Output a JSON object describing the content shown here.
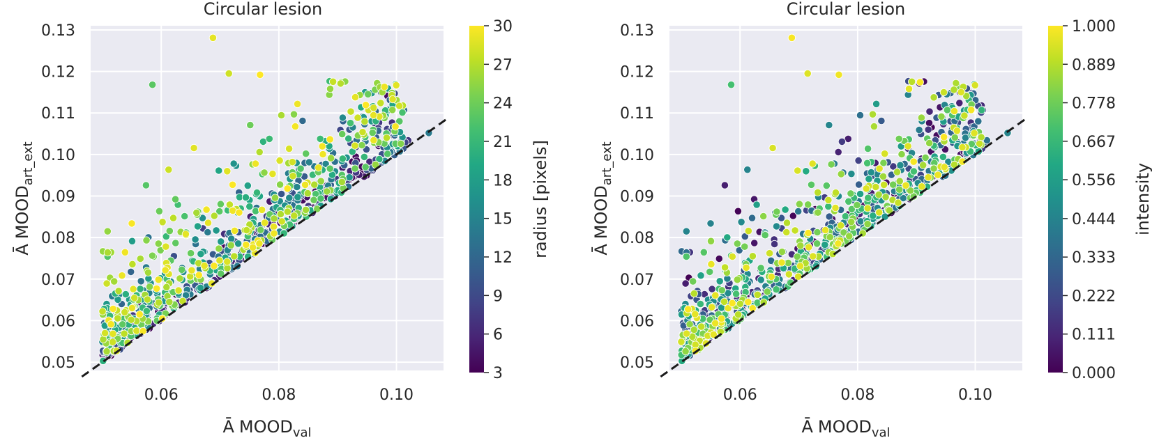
{
  "chart_data": [
    {
      "type": "scatter",
      "title": "Circular lesion",
      "xlabel_main": "MOOD",
      "xlabel_sub": "val",
      "ylabel_main": "MOOD",
      "ylabel_sub": "art_ext",
      "xlim": [
        0.048,
        0.108
      ],
      "ylim": [
        0.048,
        0.131
      ],
      "xticks": [
        0.06,
        0.08,
        0.1
      ],
      "xtick_labels": [
        "0.06",
        "0.08",
        "0.10"
      ],
      "yticks": [
        0.05,
        0.06,
        0.07,
        0.08,
        0.09,
        0.1,
        0.11,
        0.12,
        0.13
      ],
      "ytick_labels": [
        "0.05",
        "0.06",
        "0.07",
        "0.08",
        "0.09",
        "0.10",
        "0.11",
        "0.12",
        "0.13"
      ],
      "diagonal": "y = x (dashed)",
      "colorbar": {
        "label": "radius [pixels]",
        "min": 3,
        "max": 30,
        "ticks": [
          3,
          6,
          9,
          12,
          15,
          18,
          21,
          24,
          27,
          30
        ],
        "tick_labels": [
          "3",
          "6",
          "9",
          "12",
          "15",
          "18",
          "21",
          "24",
          "27",
          "30"
        ],
        "colormap": "viridis"
      },
      "color_mode": "radius",
      "n_points": 900
    },
    {
      "type": "scatter",
      "title": "Circular lesion",
      "xlabel_main": "MOOD",
      "xlabel_sub": "val",
      "ylabel_main": "MOOD",
      "ylabel_sub": "art_ext",
      "xlim": [
        0.048,
        0.108
      ],
      "ylim": [
        0.048,
        0.131
      ],
      "xticks": [
        0.06,
        0.08,
        0.1
      ],
      "xtick_labels": [
        "0.06",
        "0.08",
        "0.10"
      ],
      "yticks": [
        0.05,
        0.06,
        0.07,
        0.08,
        0.09,
        0.1,
        0.11,
        0.12,
        0.13
      ],
      "ytick_labels": [
        "0.05",
        "0.06",
        "0.07",
        "0.08",
        "0.09",
        "0.10",
        "0.11",
        "0.12",
        "0.13"
      ],
      "diagonal": "y = x (dashed)",
      "colorbar": {
        "label": "intensity",
        "min": 0.0,
        "max": 1.0,
        "ticks": [
          0.0,
          0.111,
          0.222,
          0.333,
          0.444,
          0.556,
          0.667,
          0.778,
          0.889,
          1.0
        ],
        "tick_labels": [
          "0.000",
          "0.111",
          "0.222",
          "0.333",
          "0.444",
          "0.556",
          "0.667",
          "0.778",
          "0.889",
          "1.000"
        ],
        "colormap": "viridis"
      },
      "color_mode": "intensity",
      "n_points": 900
    }
  ],
  "shared_points_note": "Approximate point cloud; both panels plot the same (x, y) samples coloured by different variables.",
  "x_symbol": "Ā",
  "y_symbol": "Ā",
  "colors": {
    "panel_bg": "#eaeaf2",
    "grid": "#ffffff",
    "text": "#262626",
    "diagonal": "#1a1a1a"
  }
}
